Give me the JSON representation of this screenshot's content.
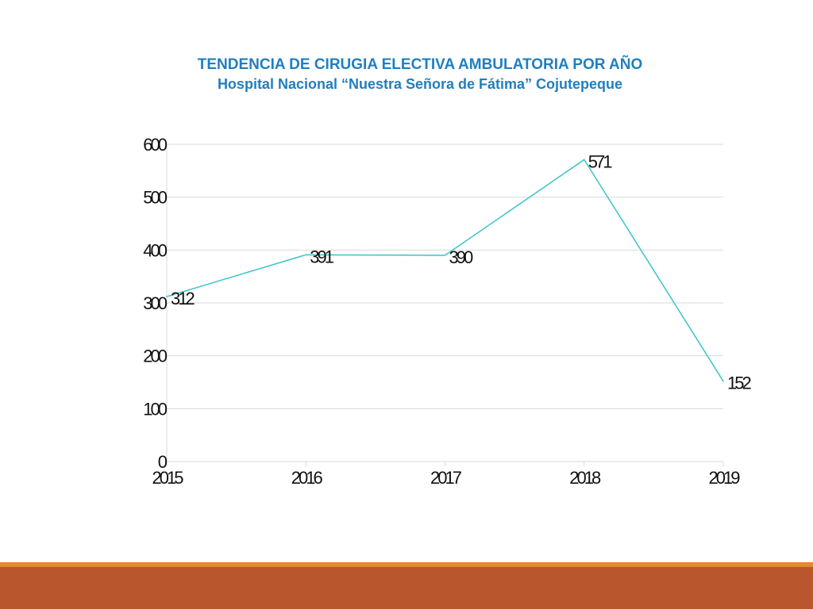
{
  "title": {
    "line1": "TENDENCIA DE CIRUGIA ELECTIVA AMBULATORIA POR AÑO",
    "line2": "Hospital Nacional “Nuestra Señora de Fátima” Cojutepeque"
  },
  "chart_data": {
    "type": "line",
    "title": "TENDENCIA DE CIRUGIA ELECTIVA AMBULATORIA POR AÑO",
    "subtitle": "Hospital Nacional “Nuestra Señora de Fátima” Cojutepeque",
    "categories": [
      "2015",
      "2016",
      "2017",
      "2018",
      "2019"
    ],
    "series": [
      {
        "values": [
          312,
          391,
          390,
          571,
          152
        ],
        "color": "#3cc3c6"
      }
    ],
    "data_labels": [
      "312",
      "391",
      "390",
      "571",
      "152"
    ],
    "y_ticks": [
      "0",
      "100",
      "200",
      "300",
      "400",
      "500",
      "600"
    ],
    "ylim": [
      0,
      600
    ],
    "xlabel": "",
    "ylabel": "",
    "grid": true,
    "legend": "none"
  },
  "colors": {
    "title": "#1f7fc1",
    "line": "#3cc3c6",
    "grid": "#d9d9d9",
    "footer_line": "#e8872c",
    "footer_band": "#b9562e"
  }
}
